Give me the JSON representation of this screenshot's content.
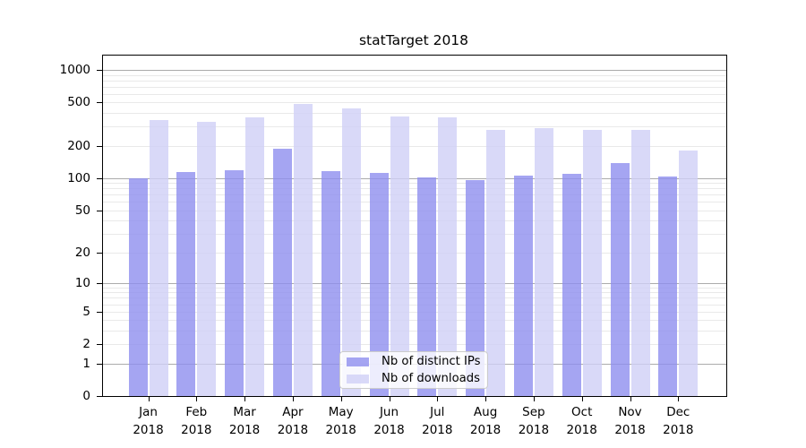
{
  "chart_data": {
    "type": "bar",
    "title": "statTarget 2018",
    "categories": [
      "Jan",
      "Feb",
      "Mar",
      "Apr",
      "May",
      "Jun",
      "Jul",
      "Aug",
      "Sep",
      "Oct",
      "Nov",
      "Dec"
    ],
    "x_sublabel": "2018",
    "series": [
      {
        "name": "Nb of distinct IPs",
        "color": "rgba(142,142,239,0.8)",
        "values": [
          100,
          113,
          118,
          186,
          116,
          112,
          101,
          96,
          106,
          110,
          138,
          103
        ]
      },
      {
        "name": "Nb of downloads",
        "color": "rgba(207,207,246,0.8)",
        "values": [
          345,
          333,
          363,
          484,
          445,
          372,
          367,
          282,
          288,
          278,
          280,
          180
        ]
      }
    ],
    "y_scale": "log1p",
    "y_ticks": [
      0,
      1,
      2,
      5,
      10,
      20,
      50,
      100,
      200,
      500,
      1000
    ],
    "ylim": [
      0,
      1400
    ],
    "grid": {
      "major_values": [
        1,
        10,
        100,
        1000
      ],
      "minor_values": [
        2,
        3,
        4,
        5,
        6,
        7,
        8,
        9,
        20,
        30,
        40,
        50,
        60,
        70,
        80,
        90,
        200,
        300,
        400,
        500,
        600,
        700,
        800,
        900
      ],
      "major_color": "#ababab",
      "minor_color": "#e9e9e9"
    },
    "legend": {
      "position": "lower center",
      "background": "rgba(255,255,255,0.8)",
      "border_color": "#cccccc"
    },
    "axis_color": "#000000",
    "background_color": "#ffffff"
  }
}
